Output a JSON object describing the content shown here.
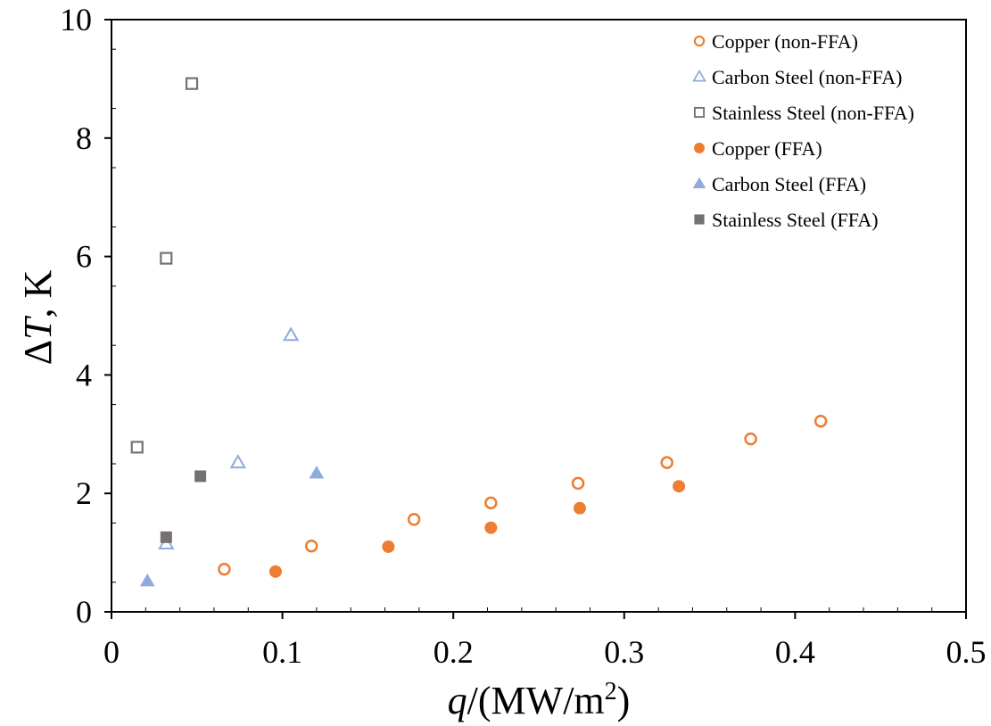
{
  "chart_data": {
    "type": "scatter",
    "title": "",
    "xlabel": {
      "var": "q",
      "rest": "/(MW/m",
      "sup": "2",
      "close": ")"
    },
    "ylabel": {
      "prefix": "Δ",
      "var": "T",
      "rest": ", K"
    },
    "xlim": [
      0,
      0.5
    ],
    "ylim": [
      0,
      10
    ],
    "xticks": [
      "0",
      "0.1",
      "0.2",
      "0.3",
      "0.4",
      "0.5"
    ],
    "yticks": [
      "0",
      "2",
      "4",
      "6",
      "8",
      "10"
    ],
    "grid": false,
    "legend_position": "top-right",
    "colors": {
      "copper": "#ED7D31",
      "carbon": "#8FAADC",
      "stainless": "#767171"
    },
    "series": [
      {
        "name": "Copper (non-FFA)",
        "marker": "circle",
        "filled": false,
        "color": "#ED7D31",
        "points": [
          [
            0.066,
            0.72
          ],
          [
            0.117,
            1.11
          ],
          [
            0.177,
            1.56
          ],
          [
            0.222,
            1.84
          ],
          [
            0.273,
            2.17
          ],
          [
            0.325,
            2.52
          ],
          [
            0.374,
            2.92
          ],
          [
            0.415,
            3.22
          ]
        ]
      },
      {
        "name": "Carbon Steel (non-FFA)",
        "marker": "triangle",
        "filled": false,
        "color": "#8FAADC",
        "points": [
          [
            0.032,
            1.15
          ],
          [
            0.074,
            2.52
          ],
          [
            0.105,
            4.67
          ]
        ]
      },
      {
        "name": "Stainless Steel (non-FFA)",
        "marker": "square",
        "filled": false,
        "color": "#767171",
        "points": [
          [
            0.015,
            2.78
          ],
          [
            0.032,
            5.97
          ],
          [
            0.047,
            8.92
          ]
        ]
      },
      {
        "name": "Copper (FFA)",
        "marker": "circle",
        "filled": true,
        "color": "#ED7D31",
        "points": [
          [
            0.096,
            0.68
          ],
          [
            0.162,
            1.1
          ],
          [
            0.222,
            1.42
          ],
          [
            0.274,
            1.75
          ],
          [
            0.332,
            2.12
          ]
        ]
      },
      {
        "name": "Carbon Steel (FFA)",
        "marker": "triangle",
        "filled": true,
        "color": "#8FAADC",
        "points": [
          [
            0.021,
            0.52
          ],
          [
            0.12,
            2.34
          ]
        ]
      },
      {
        "name": "Stainless Steel (FFA)",
        "marker": "square",
        "filled": true,
        "color": "#767171",
        "points": [
          [
            0.032,
            1.26
          ],
          [
            0.052,
            2.29
          ]
        ]
      }
    ]
  }
}
